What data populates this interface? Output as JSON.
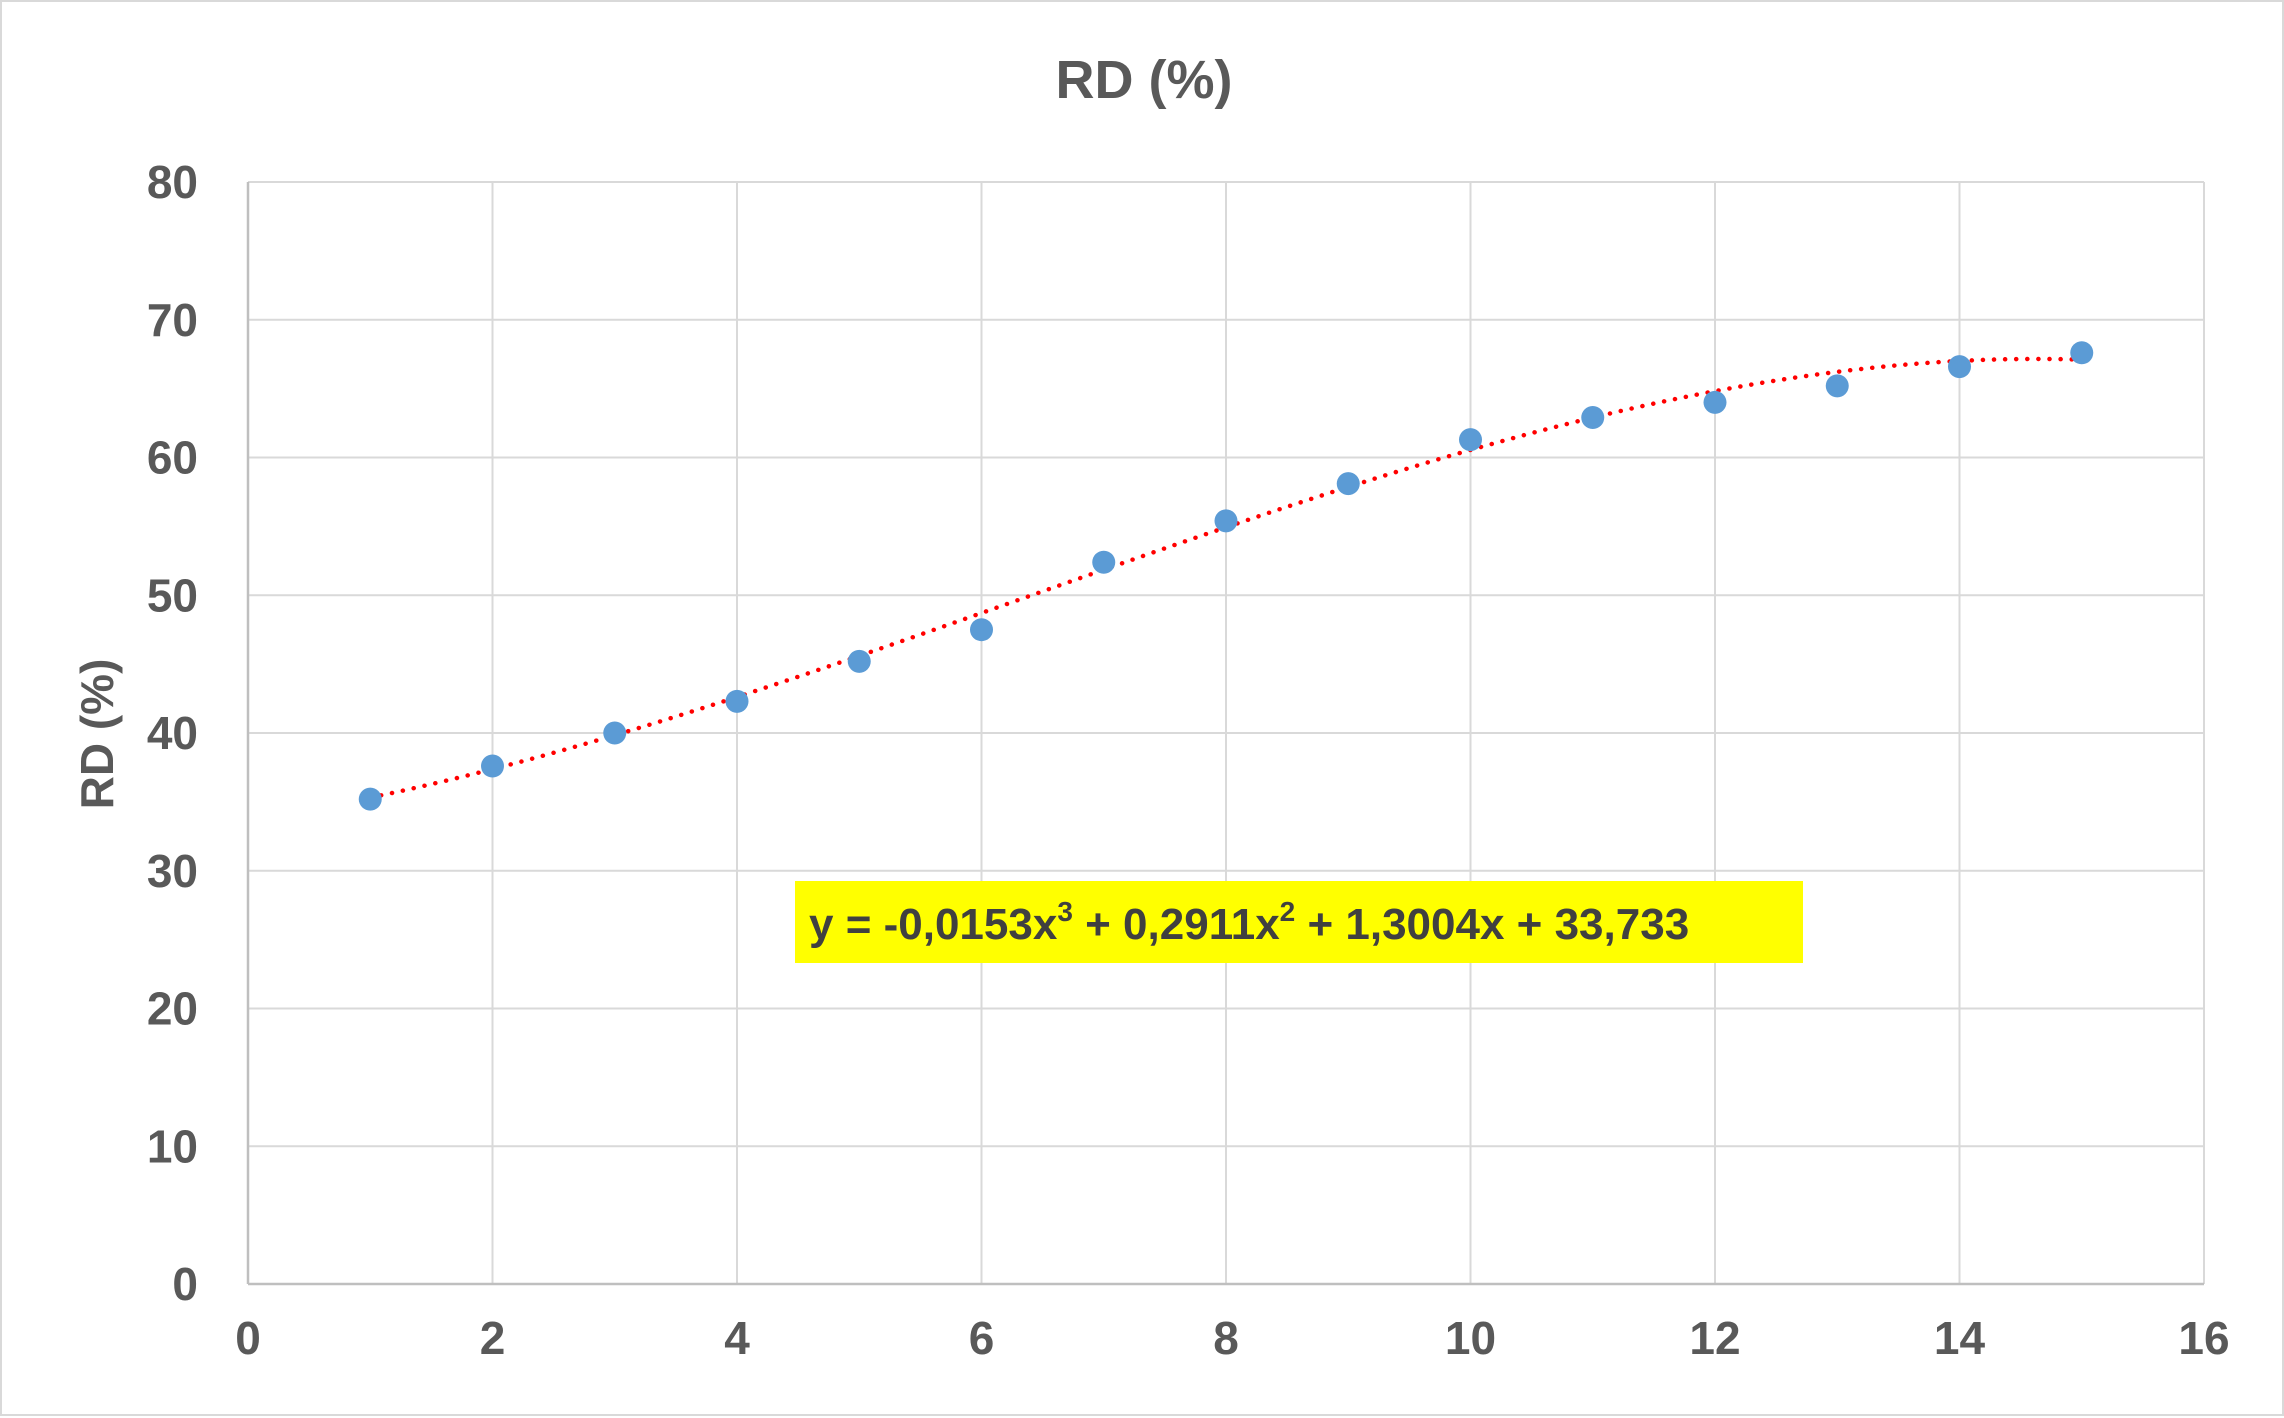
{
  "colors": {
    "points": "#5b9bd5",
    "trendline": "#ff0000",
    "equation_background": "#ffff00",
    "text": "#595959",
    "grid": "#d9d9d9"
  },
  "chart_data": {
    "type": "scatter",
    "title": "RD (%)",
    "xlabel": "",
    "ylabel": "RD (%)",
    "xlim": [
      0,
      16
    ],
    "ylim": [
      0,
      80
    ],
    "x_ticks": [
      0,
      2,
      4,
      6,
      8,
      10,
      12,
      14,
      16
    ],
    "y_ticks": [
      0,
      10,
      20,
      30,
      40,
      50,
      60,
      70,
      80
    ],
    "grid": true,
    "legend": "none",
    "series": [
      {
        "x": [
          1,
          2,
          3,
          4,
          5,
          6,
          7,
          8,
          9,
          10,
          11,
          12,
          13,
          14,
          15
        ],
        "y": [
          35.2,
          37.6,
          40.0,
          42.3,
          45.2,
          47.5,
          52.4,
          55.4,
          58.1,
          61.3,
          62.9,
          64.0,
          65.2,
          66.6,
          67.6
        ]
      }
    ],
    "trendline": {
      "type": "polynomial",
      "order": 3,
      "coefficients": [
        -0.0153,
        0.2911,
        1.3004,
        33.733
      ],
      "x_range": [
        1,
        15
      ],
      "style": "dotted",
      "equation": {
        "prefix": "y = -0,0153x",
        "exp1": "3",
        "mid1": " + 0,2911x",
        "exp2": "2",
        "suffix": " + 1,3004x + 33,733"
      }
    }
  }
}
